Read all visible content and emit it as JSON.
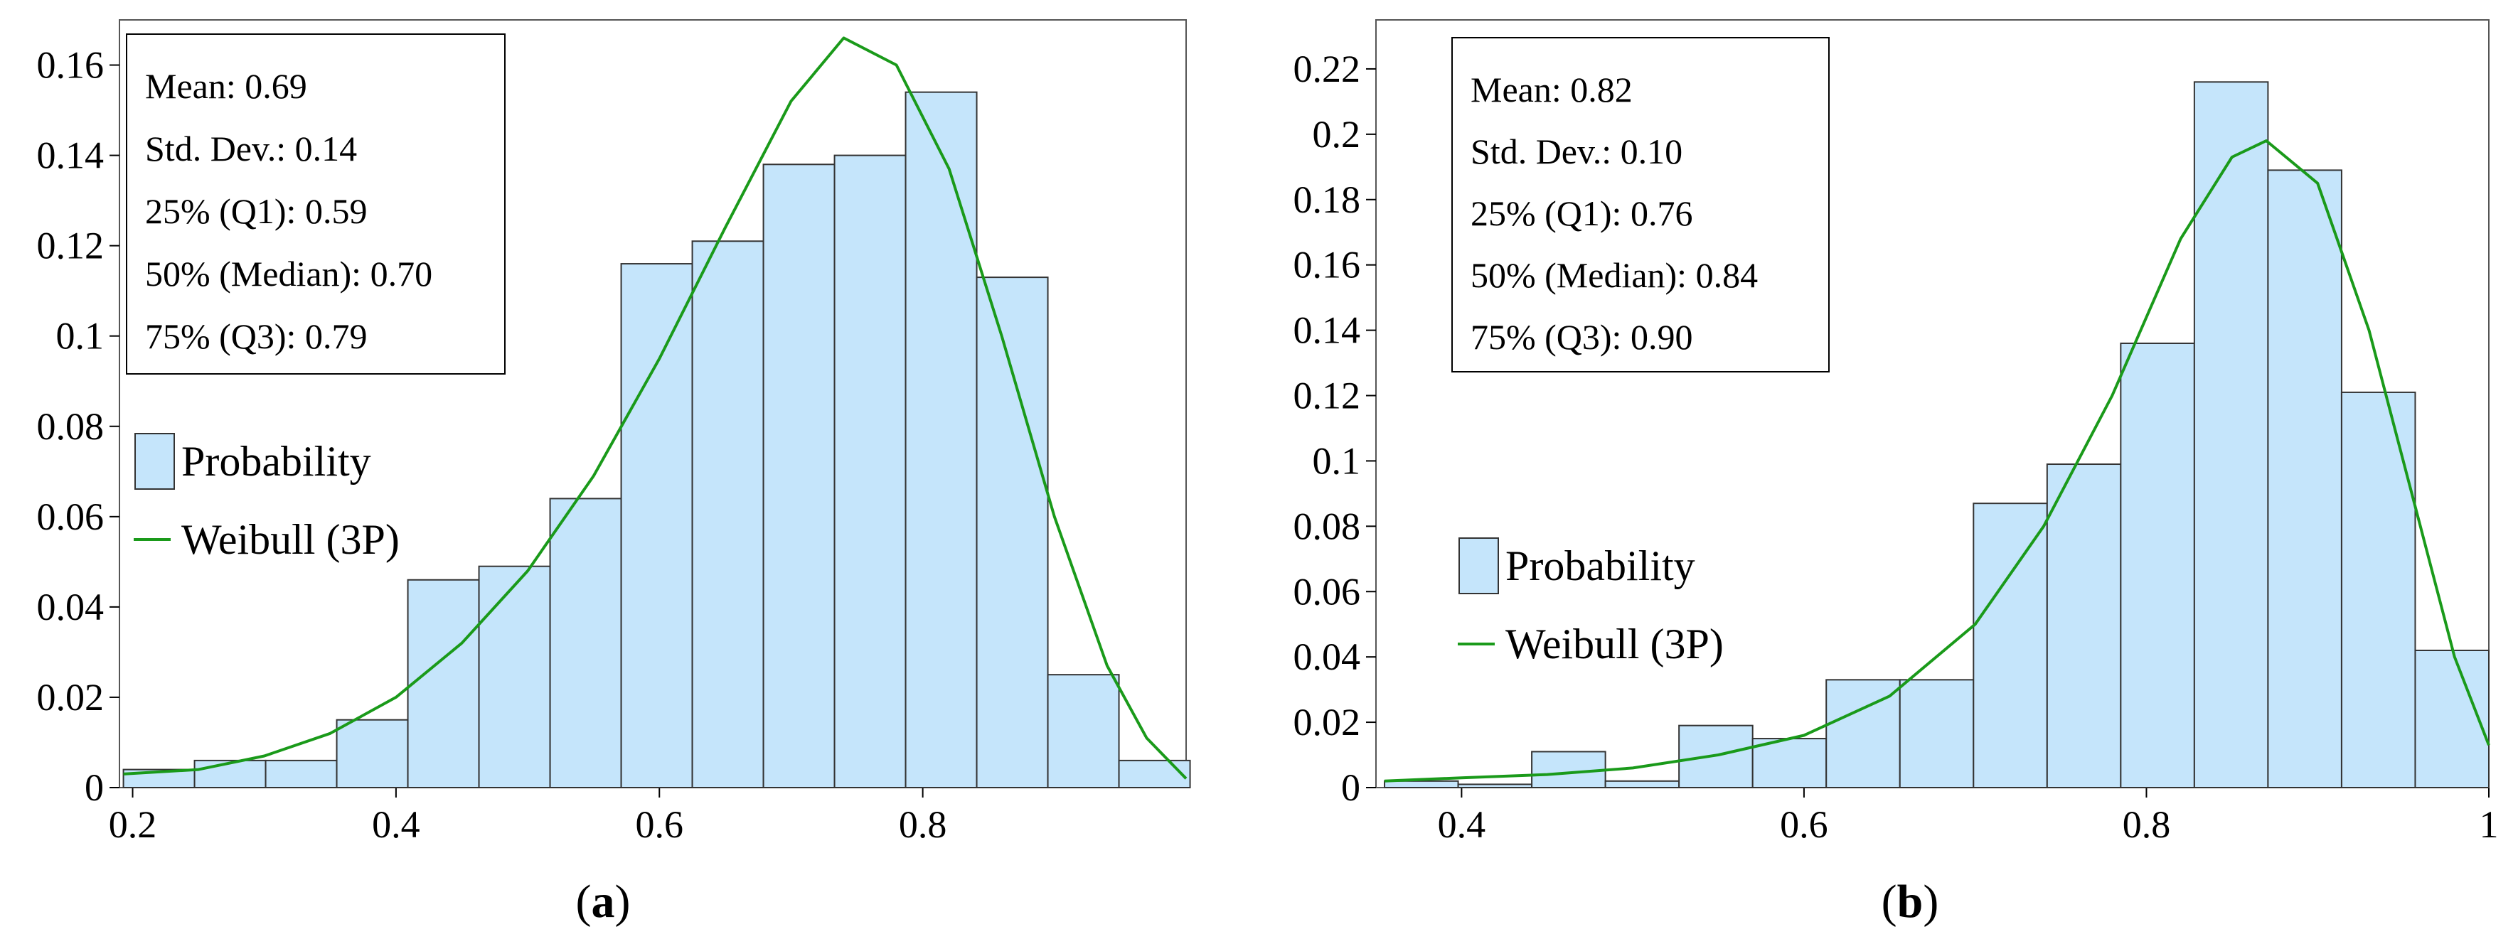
{
  "colors": {
    "bar_fill": "#c5e5fb",
    "bar_stroke": "#333333",
    "curve": "#1a9a1a",
    "frame": "#555555",
    "background": "#ffffff"
  },
  "chart_data": [
    {
      "type": "bar",
      "panel_label": "(a)",
      "panel_letter": "a",
      "xlim": [
        0.19,
        1.0
      ],
      "ylim": [
        0,
        0.17
      ],
      "xticks": [
        0.2,
        0.4,
        0.6,
        0.8
      ],
      "xtick_labels": [
        "0.2",
        "0.4",
        "0.6",
        "0.8"
      ],
      "yticks": [
        0,
        0.02,
        0.04,
        0.06,
        0.08,
        0.1,
        0.12,
        0.14,
        0.16
      ],
      "ytick_labels": [
        "0",
        "0.02",
        "0.04",
        "0.06",
        "0.08",
        "0.1",
        "0.12",
        "0.14",
        "0.16"
      ],
      "bin_edges": [
        0.193,
        0.247,
        0.301,
        0.355,
        0.409,
        0.463,
        0.517,
        0.571,
        0.625,
        0.679,
        0.733,
        0.787,
        0.841,
        0.895,
        0.949
      ],
      "values": [
        0.004,
        0.006,
        0.006,
        0.015,
        0.046,
        0.049,
        0.064,
        0.116,
        0.121,
        0.138,
        0.14,
        0.154,
        0.113,
        0.025,
        0.006
      ],
      "stats": [
        "Mean: 0.69",
        "Std. Dev.: 0.14",
        "25% (Q1): 0.59",
        "50% (Median): 0.70",
        "75% (Q3): 0.79"
      ],
      "legend": {
        "probability": "Probability",
        "fit": "Weibull (3P)"
      },
      "fit_curve": {
        "name": "Weibull (3P)",
        "x": [
          0.193,
          0.25,
          0.3,
          0.35,
          0.4,
          0.45,
          0.5,
          0.55,
          0.6,
          0.65,
          0.7,
          0.74,
          0.78,
          0.82,
          0.86,
          0.9,
          0.94,
          0.97,
          1.0
        ],
        "y": [
          0.003,
          0.004,
          0.007,
          0.012,
          0.02,
          0.032,
          0.048,
          0.069,
          0.095,
          0.124,
          0.152,
          0.166,
          0.16,
          0.137,
          0.1,
          0.06,
          0.027,
          0.011,
          0.002
        ]
      }
    },
    {
      "type": "bar",
      "panel_label": "(b)",
      "panel_letter": "b",
      "xlim": [
        0.35,
        1.0
      ],
      "ylim": [
        0,
        0.235
      ],
      "xticks": [
        0.4,
        0.6,
        0.8,
        1.0
      ],
      "xtick_labels": [
        "0.4",
        "0.6",
        "0.8",
        "1"
      ],
      "yticks": [
        0,
        0.02,
        0.04,
        0.06,
        0.08,
        0.1,
        0.12,
        0.14,
        0.16,
        0.18,
        0.2,
        0.22
      ],
      "ytick_labels": [
        "0",
        "0.02",
        "0.04",
        "0.06",
        "0.08",
        "0.1",
        "0.12",
        "0.14",
        "0.16",
        "0.18",
        "0.2",
        "0.22"
      ],
      "bin_edges": [
        0.355,
        0.398,
        0.441,
        0.484,
        0.527,
        0.57,
        0.613,
        0.656,
        0.699,
        0.742,
        0.785,
        0.828,
        0.871,
        0.914,
        0.957,
        1.0
      ],
      "values": [
        0.002,
        0.001,
        0.011,
        0.002,
        0.019,
        0.015,
        0.033,
        0.033,
        0.087,
        0.099,
        0.136,
        0.216,
        0.189,
        0.121,
        0.042
      ],
      "stats": [
        "Mean: 0.82",
        "Std. Dev.: 0.10",
        "25% (Q1): 0.76",
        "50% (Median): 0.84",
        "75% (Q3): 0.90"
      ],
      "legend": {
        "probability": "Probability",
        "fit": "Weibull (3P)"
      },
      "fit_curve": {
        "name": "Weibull (3P)",
        "x": [
          0.355,
          0.4,
          0.45,
          0.5,
          0.55,
          0.6,
          0.65,
          0.7,
          0.74,
          0.78,
          0.82,
          0.85,
          0.87,
          0.9,
          0.93,
          0.96,
          0.98,
          1.0
        ],
        "y": [
          0.002,
          0.003,
          0.004,
          0.006,
          0.01,
          0.016,
          0.028,
          0.05,
          0.08,
          0.12,
          0.168,
          0.193,
          0.198,
          0.185,
          0.14,
          0.08,
          0.04,
          0.013
        ]
      }
    }
  ]
}
